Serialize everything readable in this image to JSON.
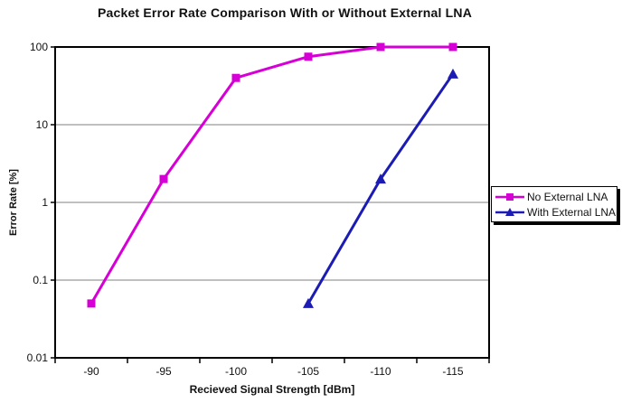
{
  "chart_data": {
    "type": "line",
    "title": "Packet Error Rate Comparison With or Without External LNA",
    "xlabel": "Recieved Signal Strength [dBm]",
    "ylabel": "Error Rate [%]",
    "x_categories": [
      "-90",
      "-95",
      "-100",
      "-105",
      "-110",
      "-115"
    ],
    "y_scale": "log",
    "y_ticks": [
      "100",
      "10",
      "1",
      "0.1",
      "0.01"
    ],
    "ylim": [
      0.01,
      100
    ],
    "grid": "horizontal-major-only",
    "grid_color": "#808080",
    "axis_color": "#000000",
    "legend_position": "right-outside",
    "series": [
      {
        "name": "No External LNA",
        "marker": "square",
        "color": "#d600d6",
        "x": [
          -90,
          -95,
          -100,
          -105,
          -110,
          -115
        ],
        "values": [
          0.05,
          2,
          40,
          75,
          100,
          100
        ]
      },
      {
        "name": "With External LNA",
        "marker": "triangle",
        "color": "#1c1cb4",
        "x": [
          -105,
          -110,
          -115
        ],
        "values": [
          0.05,
          2,
          45
        ]
      }
    ]
  }
}
